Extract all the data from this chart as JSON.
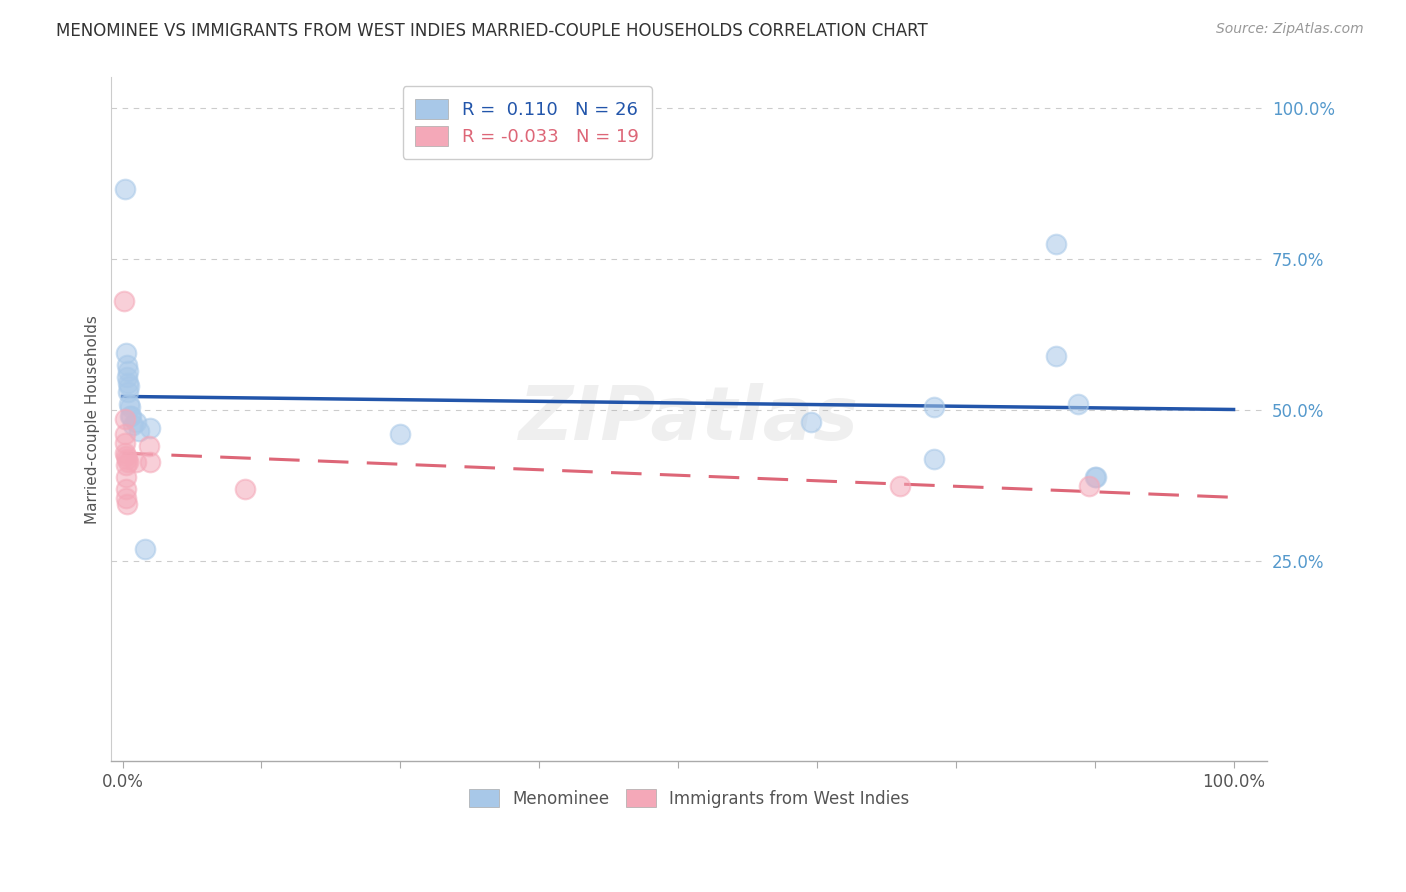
{
  "title": "MENOMINEE VS IMMIGRANTS FROM WEST INDIES MARRIED-COUPLE HOUSEHOLDS CORRELATION CHART",
  "source": "Source: ZipAtlas.com",
  "ylabel": "Married-couple Households",
  "legend_entries": [
    {
      "label": "R =  0.110   N = 26",
      "color": "#a8c8e8"
    },
    {
      "label": "R = -0.033   N = 19",
      "color": "#f4a8b8"
    }
  ],
  "legend_labels_bottom": [
    "Menominee",
    "Immigrants from West Indies"
  ],
  "menominee_points": [
    [
      0.002,
      0.865
    ],
    [
      0.003,
      0.595
    ],
    [
      0.004,
      0.575
    ],
    [
      0.004,
      0.555
    ],
    [
      0.005,
      0.565
    ],
    [
      0.005,
      0.545
    ],
    [
      0.005,
      0.53
    ],
    [
      0.006,
      0.54
    ],
    [
      0.006,
      0.51
    ],
    [
      0.007,
      0.505
    ],
    [
      0.007,
      0.49
    ],
    [
      0.008,
      0.49
    ],
    [
      0.009,
      0.475
    ],
    [
      0.012,
      0.48
    ],
    [
      0.015,
      0.465
    ],
    [
      0.02,
      0.27
    ],
    [
      0.025,
      0.47
    ],
    [
      0.25,
      0.46
    ],
    [
      0.62,
      0.48
    ],
    [
      0.73,
      0.505
    ],
    [
      0.73,
      0.42
    ],
    [
      0.84,
      0.775
    ],
    [
      0.84,
      0.59
    ],
    [
      0.86,
      0.51
    ],
    [
      0.875,
      0.39
    ],
    [
      0.876,
      0.39
    ]
  ],
  "westindies_points": [
    [
      0.001,
      0.68
    ],
    [
      0.002,
      0.485
    ],
    [
      0.002,
      0.46
    ],
    [
      0.002,
      0.445
    ],
    [
      0.002,
      0.43
    ],
    [
      0.003,
      0.425
    ],
    [
      0.003,
      0.41
    ],
    [
      0.003,
      0.39
    ],
    [
      0.003,
      0.37
    ],
    [
      0.003,
      0.355
    ],
    [
      0.004,
      0.42
    ],
    [
      0.004,
      0.345
    ],
    [
      0.005,
      0.415
    ],
    [
      0.012,
      0.415
    ],
    [
      0.024,
      0.44
    ],
    [
      0.025,
      0.415
    ],
    [
      0.11,
      0.37
    ],
    [
      0.7,
      0.375
    ],
    [
      0.87,
      0.375
    ]
  ],
  "blue_dot_color": "#a8c8e8",
  "pink_dot_color": "#f4a8b8",
  "blue_line_color": "#2255aa",
  "pink_line_color": "#dd6677",
  "background_color": "#ffffff",
  "grid_color": "#cccccc",
  "right_label_color": "#5599cc",
  "title_color": "#333333",
  "source_color": "#999999",
  "ylim_min": -0.08,
  "ylim_max": 1.05,
  "xlim_min": -0.01,
  "xlim_max": 1.03
}
